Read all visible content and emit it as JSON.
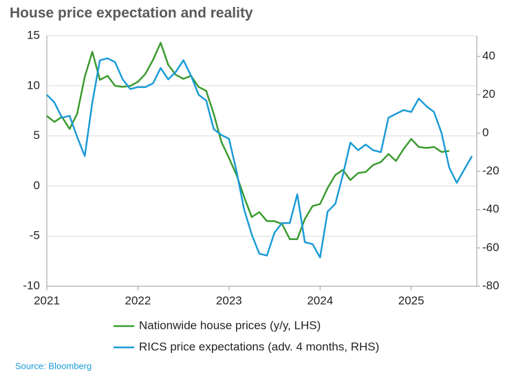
{
  "chart_data": {
    "type": "line",
    "title": "House price expectation and reality",
    "source": "Source: Bloomberg",
    "x": [
      2021,
      2021.083,
      2021.167,
      2021.25,
      2021.333,
      2021.417,
      2021.5,
      2021.583,
      2021.667,
      2021.75,
      2021.833,
      2021.917,
      2022,
      2022.083,
      2022.167,
      2022.25,
      2022.333,
      2022.417,
      2022.5,
      2022.583,
      2022.667,
      2022.75,
      2022.833,
      2022.917,
      2023,
      2023.083,
      2023.167,
      2023.25,
      2023.333,
      2023.417,
      2023.5,
      2023.583,
      2023.667,
      2023.75,
      2023.833,
      2023.917,
      2024,
      2024.083,
      2024.167,
      2024.25,
      2024.333,
      2024.417,
      2024.5,
      2024.583,
      2024.667,
      2024.75,
      2024.833,
      2024.917,
      2025,
      2025.083,
      2025.167,
      2025.25,
      2025.333,
      2025.417,
      2025.5,
      2025.583,
      2025.667
    ],
    "series": [
      {
        "name": "Nationwide house prices (y/y, LHS)",
        "color": "#3a9a2e",
        "axis": "y",
        "values": [
          7.0,
          6.4,
          6.9,
          5.7,
          7.2,
          10.9,
          13.4,
          10.6,
          11.0,
          10.0,
          9.9,
          10.0,
          10.4,
          11.2,
          12.6,
          14.3,
          12.1,
          11.1,
          10.7,
          11.0,
          9.9,
          9.5,
          7.2,
          4.4,
          2.8,
          1.1,
          -1.1,
          -3.1,
          -2.6,
          -3.5,
          -3.5,
          -3.8,
          -5.3,
          -5.3,
          -3.3,
          -2.0,
          -1.8,
          -0.2,
          1.1,
          1.6,
          0.6,
          1.3,
          1.4,
          2.1,
          2.4,
          3.2,
          2.5,
          3.7,
          4.7,
          3.9,
          3.8,
          3.9,
          3.4,
          3.5,
          null,
          null,
          null
        ]
      },
      {
        "name": "RICS price expectations (adv. 4 months, RHS)",
        "color": "#1a9bd7",
        "axis": "y2",
        "values": [
          20,
          16,
          8,
          9,
          -2,
          -12,
          16,
          38,
          39,
          37,
          28,
          23,
          24,
          24,
          26,
          34,
          28,
          32,
          38,
          30,
          20,
          17,
          2,
          -1,
          -3,
          -20,
          -40,
          -53,
          -63,
          -64,
          -52,
          -47,
          -47,
          -32,
          -57,
          -58,
          -65,
          -41,
          -37,
          -22,
          -5,
          -9,
          -6,
          -9,
          -10,
          8,
          10,
          12,
          11,
          18,
          14,
          11,
          0,
          -18,
          -26,
          -19,
          -12
        ]
      }
    ],
    "xlim": [
      2021,
      2025.72
    ],
    "xticks": [
      2021,
      2022,
      2023,
      2024,
      2025
    ],
    "ylim": [
      -10,
      15
    ],
    "yticks": [
      -10,
      -5,
      0,
      5,
      10,
      15
    ],
    "y2lim": [
      -80,
      50.8
    ],
    "y2ticks": [
      -80,
      -60,
      -40,
      -20,
      0,
      20,
      40
    ],
    "grid": true
  }
}
